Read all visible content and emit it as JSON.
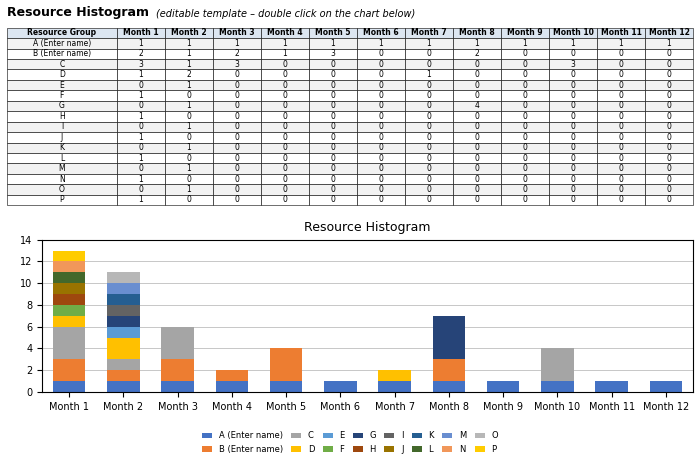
{
  "chart_data": {
    "type": "bar",
    "stacked": true,
    "title": "Resource Histogram",
    "subtitle": "(editable template – double click on the chart below)",
    "table_header": "Resource Group",
    "categories": [
      "Month 1",
      "Month 2",
      "Month 3",
      "Month 4",
      "Month 5",
      "Month 6",
      "Month 7",
      "Month 8",
      "Month 9",
      "Month 10",
      "Month 11",
      "Month 12"
    ],
    "series": [
      {
        "name": "A (Enter name)",
        "values": [
          1,
          1,
          1,
          1,
          1,
          1,
          1,
          1,
          1,
          1,
          1,
          1
        ],
        "color": "#4472c4"
      },
      {
        "name": "B (Enter name)",
        "values": [
          2,
          1,
          2,
          1,
          3,
          0,
          0,
          2,
          0,
          0,
          0,
          0
        ],
        "color": "#ed7d31"
      },
      {
        "name": "C",
        "values": [
          3,
          1,
          3,
          0,
          0,
          0,
          0,
          0,
          0,
          3,
          0,
          0
        ],
        "color": "#a5a5a5"
      },
      {
        "name": "D",
        "values": [
          1,
          2,
          0,
          0,
          0,
          0,
          1,
          0,
          0,
          0,
          0,
          0
        ],
        "color": "#ffc000"
      },
      {
        "name": "E",
        "values": [
          0,
          1,
          0,
          0,
          0,
          0,
          0,
          0,
          0,
          0,
          0,
          0
        ],
        "color": "#5b9bd5"
      },
      {
        "name": "F",
        "values": [
          1,
          0,
          0,
          0,
          0,
          0,
          0,
          0,
          0,
          0,
          0,
          0
        ],
        "color": "#70ad47"
      },
      {
        "name": "G",
        "values": [
          0,
          1,
          0,
          0,
          0,
          0,
          0,
          4,
          0,
          0,
          0,
          0
        ],
        "color": "#264478"
      },
      {
        "name": "H",
        "values": [
          1,
          0,
          0,
          0,
          0,
          0,
          0,
          0,
          0,
          0,
          0,
          0
        ],
        "color": "#9e480e"
      },
      {
        "name": "I",
        "values": [
          0,
          1,
          0,
          0,
          0,
          0,
          0,
          0,
          0,
          0,
          0,
          0
        ],
        "color": "#636363"
      },
      {
        "name": "J",
        "values": [
          1,
          0,
          0,
          0,
          0,
          0,
          0,
          0,
          0,
          0,
          0,
          0
        ],
        "color": "#997300"
      },
      {
        "name": "K",
        "values": [
          0,
          1,
          0,
          0,
          0,
          0,
          0,
          0,
          0,
          0,
          0,
          0
        ],
        "color": "#255e91"
      },
      {
        "name": "L",
        "values": [
          1,
          0,
          0,
          0,
          0,
          0,
          0,
          0,
          0,
          0,
          0,
          0
        ],
        "color": "#43682b"
      },
      {
        "name": "M",
        "values": [
          0,
          1,
          0,
          0,
          0,
          0,
          0,
          0,
          0,
          0,
          0,
          0
        ],
        "color": "#698ed0"
      },
      {
        "name": "N",
        "values": [
          1,
          0,
          0,
          0,
          0,
          0,
          0,
          0,
          0,
          0,
          0,
          0
        ],
        "color": "#f1975a"
      },
      {
        "name": "O",
        "values": [
          0,
          1,
          0,
          0,
          0,
          0,
          0,
          0,
          0,
          0,
          0,
          0
        ],
        "color": "#b7b7b7"
      },
      {
        "name": "P",
        "values": [
          1,
          0,
          0,
          0,
          0,
          0,
          0,
          0,
          0,
          0,
          0,
          0
        ],
        "color": "#ffcc00"
      }
    ],
    "ylim": [
      0,
      14
    ],
    "yticks": [
      0,
      2,
      4,
      6,
      8,
      10,
      12,
      14
    ],
    "grid": true,
    "legend": "lower center"
  }
}
